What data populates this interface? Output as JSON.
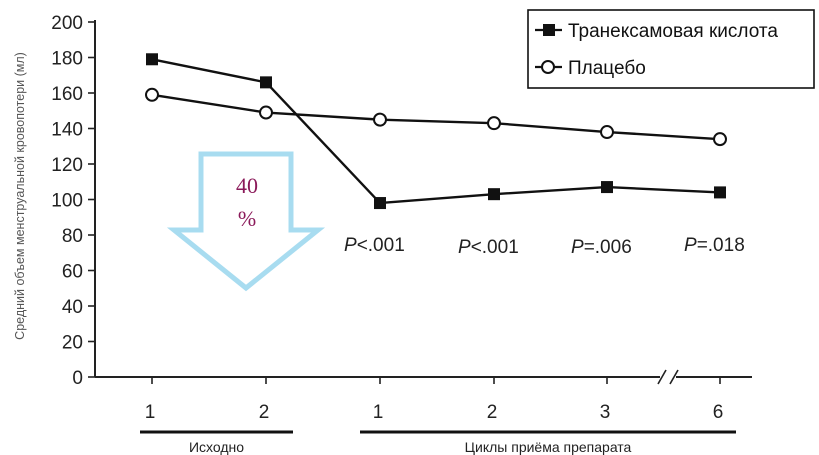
{
  "chart_data": {
    "type": "line",
    "title": "",
    "xlabel": "",
    "ylabel": "Средний объем менструальной кровопотери (мл)",
    "ylim": [
      0,
      200
    ],
    "y_ticks": [
      0,
      20,
      40,
      60,
      80,
      100,
      120,
      140,
      160,
      180,
      200
    ],
    "categories": [
      "1",
      "2",
      "1",
      "2",
      "3",
      "6"
    ],
    "axis_break": "between 3 and 6",
    "series": [
      {
        "name": "Транексамовая кислота",
        "marker": "filled-square",
        "color": "#111111",
        "values": [
          179,
          166,
          98,
          103,
          107,
          104
        ]
      },
      {
        "name": "Плацебо",
        "marker": "open-circle",
        "color": "#111111",
        "values": [
          159,
          149,
          145,
          143,
          138,
          134
        ]
      }
    ],
    "p_values": [
      {
        "category_index": 2,
        "prefix": "P",
        "text": "<.001"
      },
      {
        "category_index": 3,
        "prefix": "P",
        "text": "<.001"
      },
      {
        "category_index": 4,
        "prefix": "P",
        "text": "=.006"
      },
      {
        "category_index": 5,
        "prefix": "P",
        "text": "=.018"
      }
    ],
    "groups": [
      {
        "label": "Исходно",
        "from": 0,
        "to": 1
      },
      {
        "label": "Циклы приёма препарата",
        "from": 2,
        "to": 5
      }
    ],
    "annotation": {
      "line1": "40",
      "line2": "%",
      "arrow_color": "#a8dcf0"
    },
    "legend_placement": "top-right",
    "grid": false
  }
}
